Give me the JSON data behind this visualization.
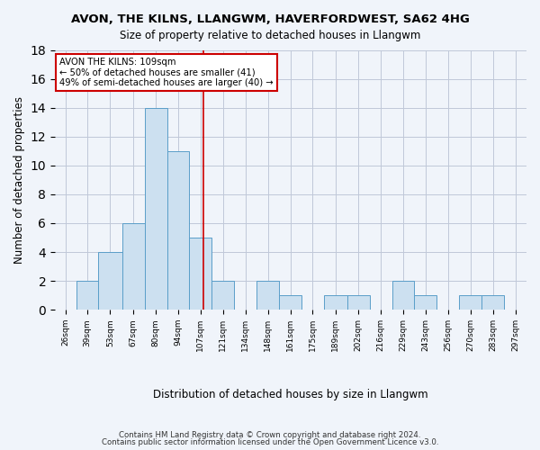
{
  "title": "AVON, THE KILNS, LLANGWM, HAVERFORDWEST, SA62 4HG",
  "subtitle": "Size of property relative to detached houses in Llangwm",
  "xlabel": "Distribution of detached houses by size in Llangwm",
  "ylabel": "Number of detached properties",
  "bar_color": "#cce0f0",
  "bar_edge_color": "#5a9ec9",
  "bin_labels": [
    "26sqm",
    "39sqm",
    "53sqm",
    "67sqm",
    "80sqm",
    "94sqm",
    "107sqm",
    "121sqm",
    "134sqm",
    "148sqm",
    "161sqm",
    "175sqm",
    "189sqm",
    "202sqm",
    "216sqm",
    "229sqm",
    "243sqm",
    "256sqm",
    "270sqm",
    "283sqm",
    "297sqm"
  ],
  "bin_edges": [
    19.5,
    32.5,
    45.5,
    60,
    73.5,
    87,
    100.5,
    114,
    127.5,
    141,
    154.5,
    168,
    181.5,
    195.5,
    209,
    222.5,
    236,
    249.5,
    263,
    276.5,
    290,
    303.5
  ],
  "counts": [
    0,
    2,
    4,
    6,
    14,
    11,
    5,
    2,
    0,
    2,
    1,
    0,
    1,
    1,
    0,
    2,
    1,
    0,
    1,
    1,
    0
  ],
  "vline_x": 109,
  "annotation_title": "AVON THE KILNS: 109sqm",
  "annotation_line1": "← 50% of detached houses are smaller (41)",
  "annotation_line2": "49% of semi-detached houses are larger (40) →",
  "ylim": [
    0,
    18
  ],
  "yticks": [
    0,
    2,
    4,
    6,
    8,
    10,
    12,
    14,
    16,
    18
  ],
  "footer1": "Contains HM Land Registry data © Crown copyright and database right 2024.",
  "footer2": "Contains public sector information licensed under the Open Government Licence v3.0.",
  "background_color": "#f0f4fa",
  "annotation_box_color": "#ffffff",
  "annotation_box_edge": "#cc0000",
  "vline_color": "#cc0000"
}
